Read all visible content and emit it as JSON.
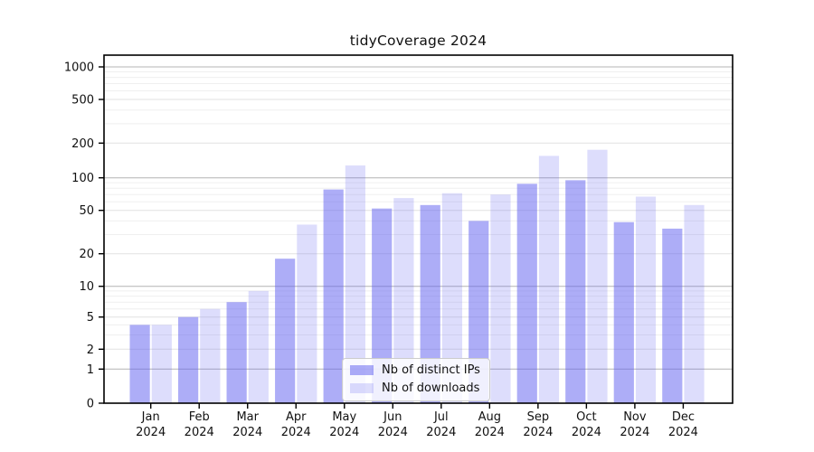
{
  "chart_data": {
    "type": "bar",
    "title": "tidyCoverage 2024",
    "xlabel": "",
    "ylabel": "",
    "yscale": "symlog",
    "ylim": [
      0,
      1200
    ],
    "grid": true,
    "legend_position": "lower-center",
    "yticks": [
      1000,
      500,
      200,
      100,
      50,
      20,
      10,
      5,
      2,
      1,
      0
    ],
    "categories": [
      "Jan",
      "Feb",
      "Mar",
      "Apr",
      "May",
      "Jun",
      "Jul",
      "Aug",
      "Sep",
      "Oct",
      "Nov",
      "Dec"
    ],
    "category_year": "2024",
    "series": [
      {
        "name": "Nb of distinct IPs",
        "color": "rgba(98,98,240,0.52)",
        "values": [
          4,
          5,
          7,
          18,
          78,
          52,
          56,
          40,
          88,
          95,
          39,
          34
        ]
      },
      {
        "name": "Nb of downloads",
        "color": "rgba(98,98,240,0.22)",
        "values": [
          4,
          6,
          9,
          37,
          128,
          65,
          72,
          70,
          155,
          175,
          67,
          56
        ]
      }
    ]
  },
  "colors": {
    "spine": "#000000",
    "tick_label": "#111111",
    "grid_major": "#b4b4b4",
    "grid_minor_labeled": "#e2e2e2",
    "grid_minor": "#efefef"
  }
}
